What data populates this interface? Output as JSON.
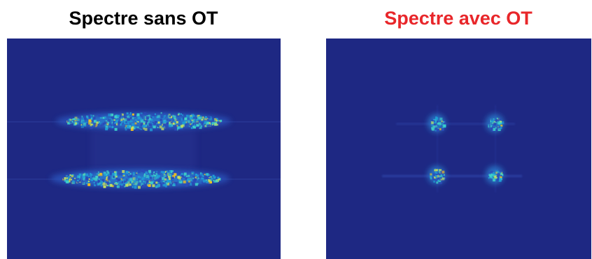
{
  "panels": [
    {
      "title": "Spectre sans OT",
      "title_color": "#000000",
      "icon": "broad-speckle-spectrum-image"
    },
    {
      "title": "Spectre avec OT",
      "title_color": "#e8262a",
      "icon": "four-peak-spectrum-image"
    }
  ],
  "colors": {
    "background_blue": "#1e2883",
    "colormap": [
      "#1e2883",
      "#2a49b8",
      "#1f9fd6",
      "#3fd3c8",
      "#c9e35a",
      "#f2c01e"
    ]
  }
}
